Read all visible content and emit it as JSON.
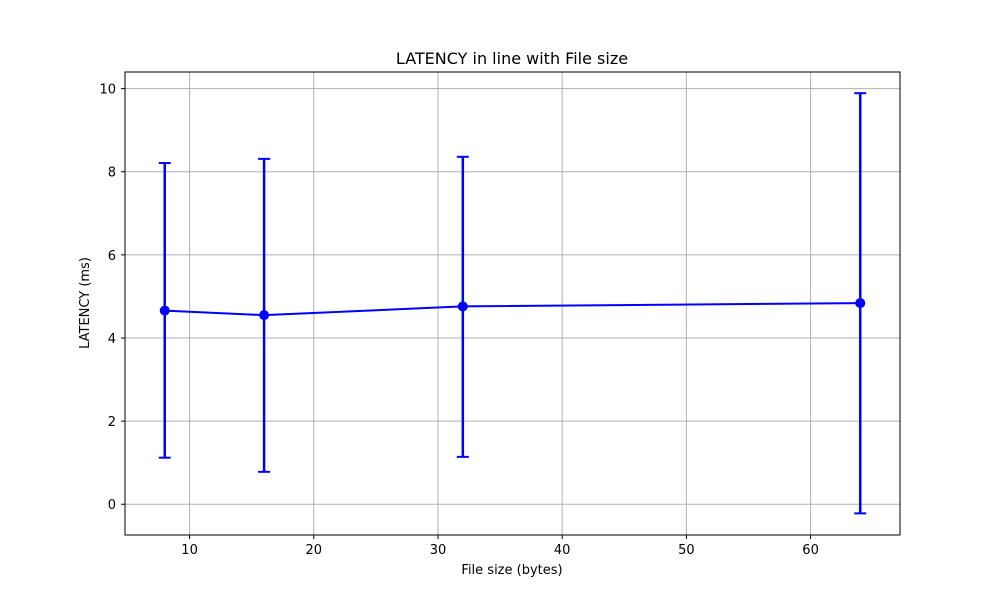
{
  "chart_data": {
    "type": "line",
    "title": "LATENCY in line with File size",
    "xlabel": "File size (bytes)",
    "ylabel": "LATENCY (ms)",
    "xlim": [
      4.8,
      67.2
    ],
    "ylim": [
      -0.74,
      10.4
    ],
    "xticks": [
      10,
      20,
      30,
      40,
      50,
      60
    ],
    "yticks": [
      0,
      2,
      4,
      6,
      8,
      10
    ],
    "grid": true,
    "legend": "none",
    "series": [
      {
        "color": "#0000ff",
        "marker": "circle",
        "x": [
          8,
          16,
          32,
          64
        ],
        "y": [
          4.66,
          4.55,
          4.76,
          4.84
        ],
        "y_lower": [
          1.12,
          0.78,
          1.14,
          -0.22
        ],
        "y_upper": [
          8.21,
          8.31,
          8.36,
          9.89
        ]
      }
    ]
  }
}
